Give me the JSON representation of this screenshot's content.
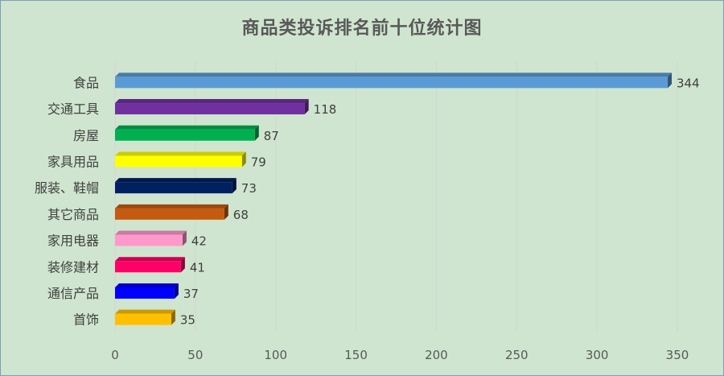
{
  "chart_data": {
    "type": "bar",
    "orientation": "horizontal",
    "title": "商品类投诉排名前十位统计图",
    "categories": [
      "食品",
      "交通工具",
      "房屋",
      "家具用品",
      "服装、鞋帽",
      "其它商品",
      "家用电器",
      "装修建材",
      "通信产品",
      "首饰"
    ],
    "values": [
      344,
      118,
      87,
      79,
      73,
      68,
      42,
      41,
      37,
      35
    ],
    "colors": [
      "#5b9bd5",
      "#7030a0",
      "#00b050",
      "#ffff00",
      "#002060",
      "#c55a11",
      "#ff99cc",
      "#ff0066",
      "#0000ff",
      "#ffc000"
    ],
    "xlim": [
      0,
      350
    ],
    "xticks": [
      0,
      50,
      100,
      150,
      200,
      250,
      300,
      350
    ],
    "grid": true,
    "xlabel": "",
    "ylabel": ""
  }
}
